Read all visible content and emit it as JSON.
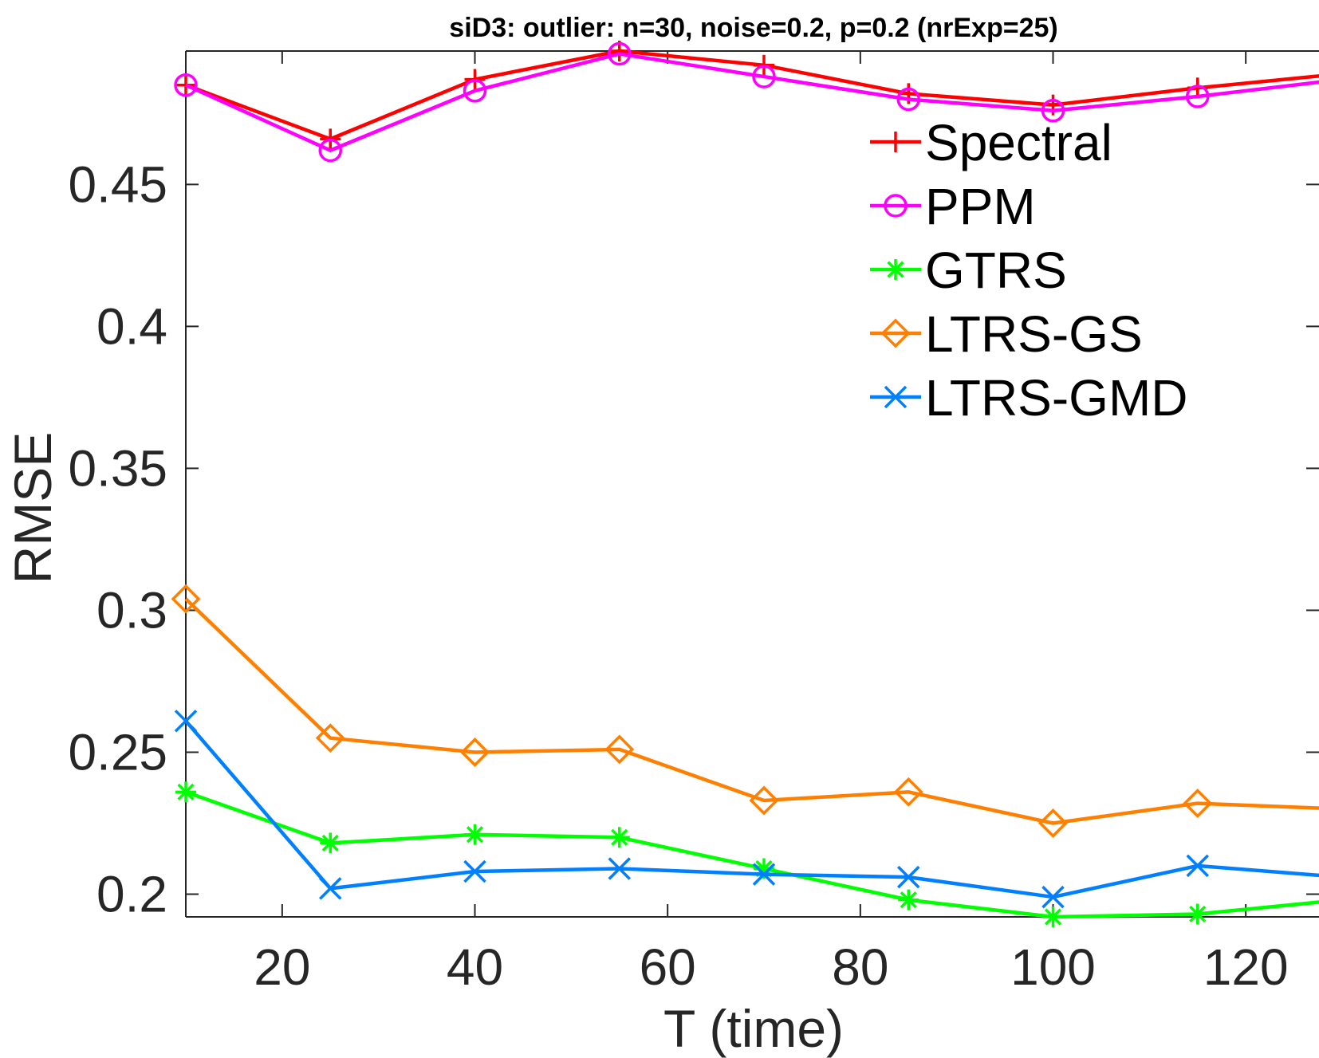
{
  "chart_data": {
    "type": "line",
    "title": "siD3: outlier: n=30, noise=0.2, p=0.2 (nrExp=25)",
    "xlabel": "T (time)",
    "ylabel": "RMSE",
    "x": [
      10,
      25,
      40,
      55,
      70,
      85,
      100,
      115,
      130
    ],
    "xlim": [
      10,
      130
    ],
    "ylim": [
      0.192,
      0.497
    ],
    "xticks": [
      20,
      40,
      60,
      80,
      100,
      120
    ],
    "xtick_labels": [
      "20",
      "40",
      "60",
      "80",
      "100",
      "120"
    ],
    "yticks": [
      0.2,
      0.25,
      0.3,
      0.35,
      0.4,
      0.45
    ],
    "ytick_labels": [
      "0.2",
      "0.25",
      "0.3",
      "0.35",
      "0.4",
      "0.45"
    ],
    "grid": false,
    "legend_position": "top-right",
    "series": [
      {
        "name": "Spectral",
        "color": "#ff0000",
        "marker": "plus",
        "values": [
          0.485,
          0.466,
          0.487,
          0.497,
          0.492,
          0.482,
          0.478,
          0.484,
          0.489
        ]
      },
      {
        "name": "PPM",
        "color": "#ff00ff",
        "marker": "circle",
        "values": [
          0.485,
          0.462,
          0.483,
          0.496,
          0.488,
          0.48,
          0.476,
          0.481,
          0.487
        ]
      },
      {
        "name": "GTRS",
        "color": "#00ff00",
        "marker": "asterisk",
        "values": [
          0.236,
          0.218,
          0.221,
          0.22,
          0.209,
          0.198,
          0.192,
          0.193,
          0.198
        ]
      },
      {
        "name": "LTRS-GS",
        "color": "#ff8000",
        "marker": "diamond",
        "values": [
          0.304,
          0.255,
          0.25,
          0.251,
          0.233,
          0.236,
          0.225,
          0.232,
          0.23
        ]
      },
      {
        "name": "LTRS-GMD",
        "color": "#0080ff",
        "marker": "x",
        "values": [
          0.261,
          0.202,
          0.208,
          0.209,
          0.207,
          0.206,
          0.199,
          0.21,
          0.206
        ]
      }
    ]
  }
}
